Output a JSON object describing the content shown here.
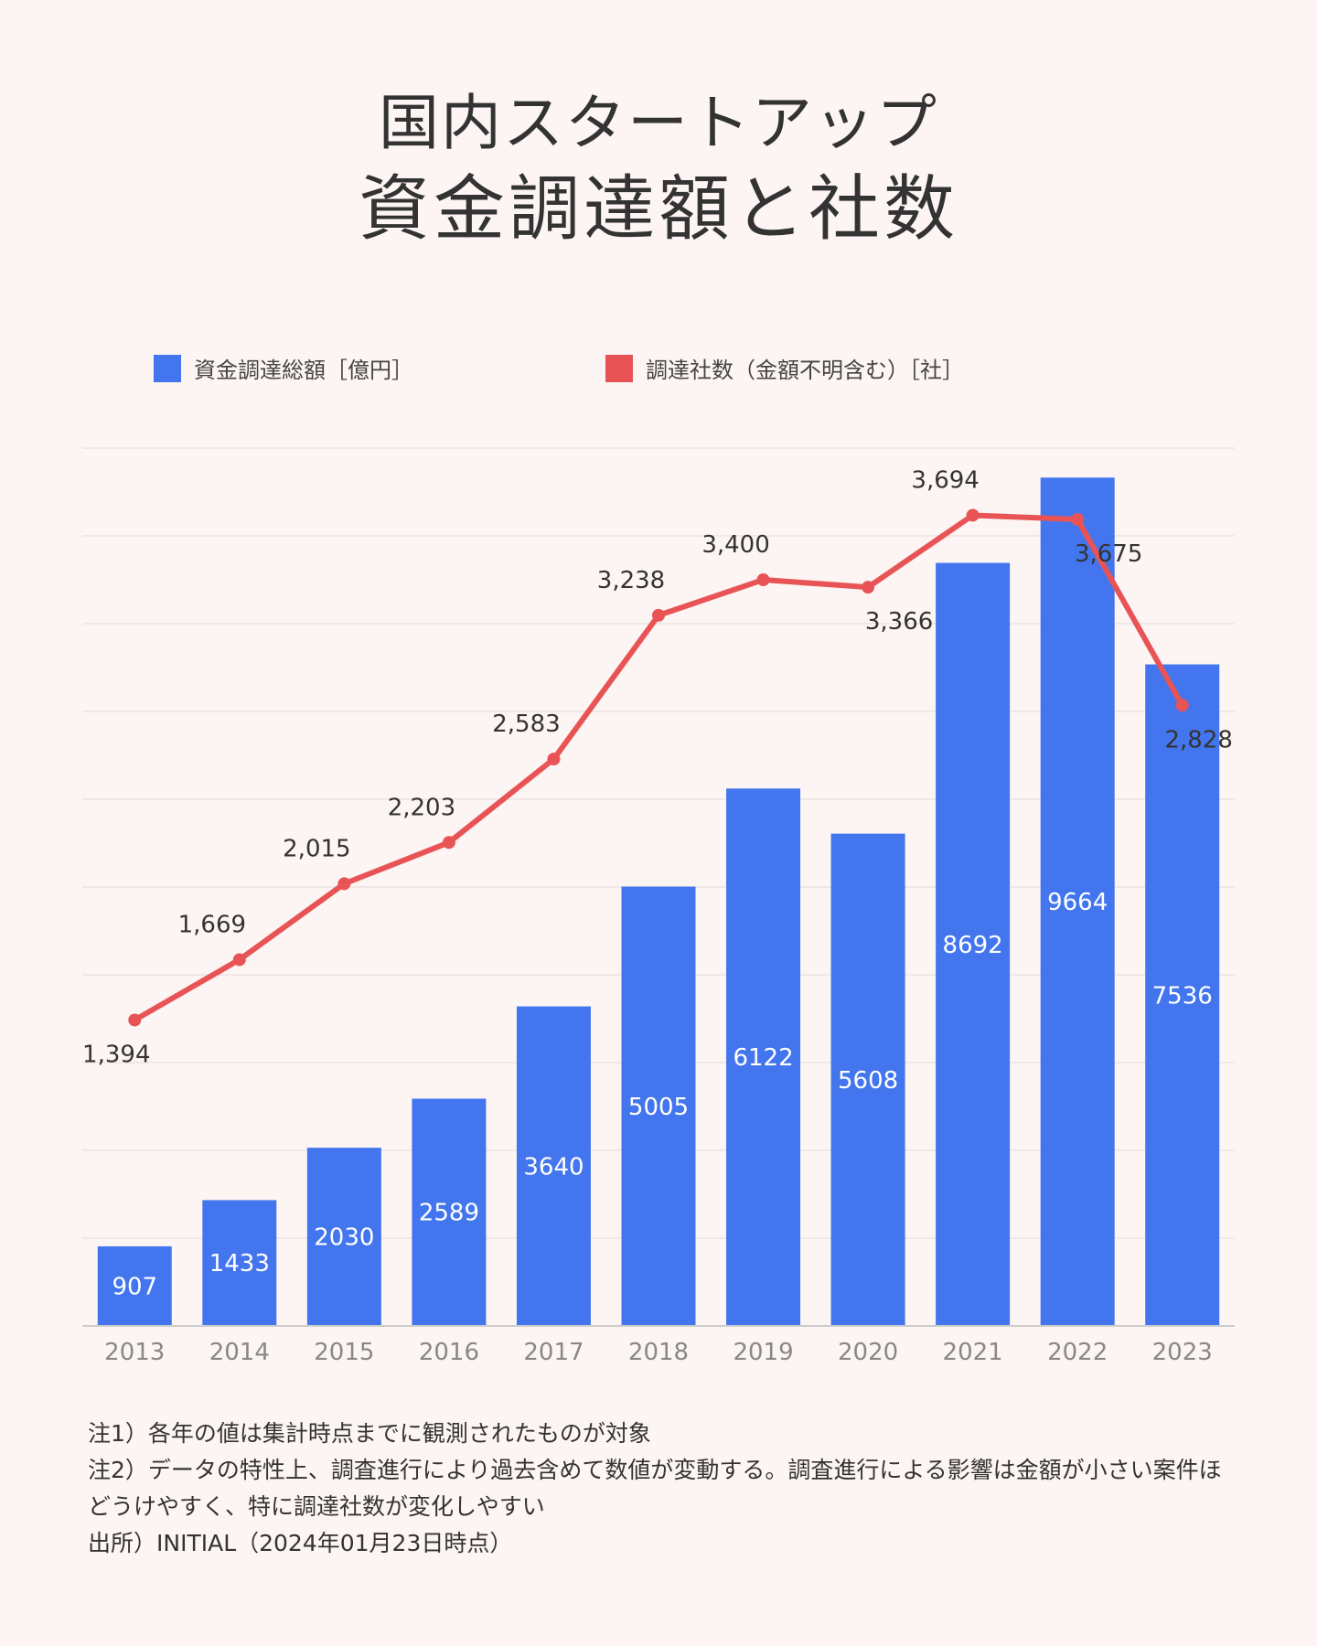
{
  "title": {
    "line1": "国内スタートアップ",
    "line2": "資金調達額と社数"
  },
  "colors": {
    "background": "#fdf5f3",
    "bar": "#4376ee",
    "line": "#e85456",
    "grid": "#ebe3e1",
    "axis": "#cccccc",
    "tick_text": "#888888",
    "text": "#333333"
  },
  "legend": {
    "bar_label": "資金調達総額［億円］",
    "line_label": "調達社数（金額不明含む）［社］"
  },
  "chart_data": {
    "type": "bar",
    "categories": [
      "2013",
      "2014",
      "2015",
      "2016",
      "2017",
      "2018",
      "2019",
      "2020",
      "2021",
      "2022",
      "2023"
    ],
    "series": [
      {
        "name": "資金調達総額［億円］",
        "type": "bar",
        "axis": "left",
        "values": [
          907,
          1433,
          2030,
          2589,
          3640,
          5005,
          6122,
          5608,
          8692,
          9664,
          7536
        ],
        "labels": [
          "907",
          "1433",
          "2030",
          "2589",
          "3640",
          "5005",
          "6122",
          "5608",
          "8692",
          "9664",
          "7536"
        ]
      },
      {
        "name": "調達社数（金額不明含む）［社］",
        "type": "line",
        "axis": "right",
        "values": [
          1394,
          1669,
          2015,
          2203,
          2583,
          3238,
          3400,
          3366,
          3694,
          3675,
          2828
        ],
        "labels": [
          "1,394",
          "1,669",
          "2,015",
          "2,203",
          "2,583",
          "3,238",
          "3,400",
          "3,366",
          "3,694",
          "3,675",
          "2,828"
        ]
      }
    ],
    "ylim_left": [
      0,
      10000
    ],
    "ylim_right": [
      0,
      4000
    ],
    "grid": true,
    "legend_position": "top"
  },
  "notes": [
    "注1）各年の値は集計時点までに観測されたものが対象",
    "注2）データの特性上、調査進行により過去含めて数値が変動する。調査進行による影響は金額が小さい案件ほどうけやすく、特に調達社数が変化しやすい",
    "出所）INITIAL（2024年01月23日時点）"
  ]
}
